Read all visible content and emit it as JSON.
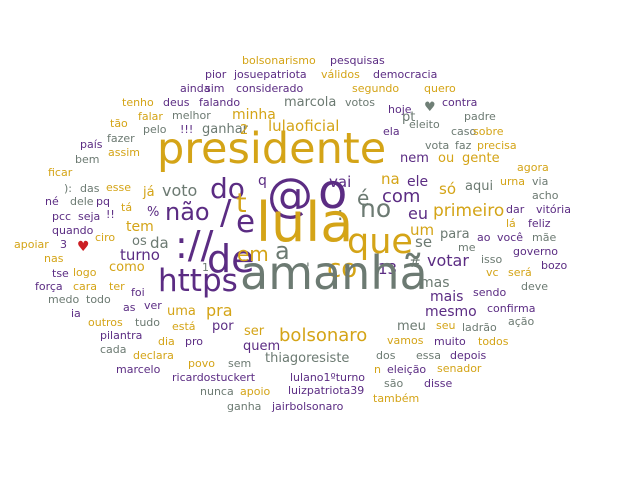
{
  "palette": {
    "gold": "#d4a417",
    "purple": "#5b2c83",
    "gray": "#6c7a72"
  },
  "heart_icons": [
    {
      "name": "heart-icon-red",
      "color": "#cc1f24"
    },
    {
      "name": "heart-icon-gray",
      "color": "#6f7f76"
    }
  ],
  "words": [
    "bolsonarismo",
    "pesquisas",
    "pior",
    "josuepatriota",
    "válidos",
    "democracia",
    "ainda",
    "sim",
    "considerado",
    "segundo",
    "quero",
    "tenho",
    "deus",
    "falando",
    "marcola",
    "votos",
    "hoje",
    "contra",
    "tão",
    "falar",
    "melhor",
    "minha",
    "ela",
    "eleito",
    "padre",
    "país",
    "fazer",
    "pelo",
    "!!!",
    "ganhar",
    "lulaoficial",
    "pt",
    "caso",
    "sobre",
    "bem",
    "assim",
    "vota",
    "faz",
    "precisa",
    "presidente",
    "2",
    "nem",
    "ou",
    "gente",
    "ficar",
    "q",
    "agora",
    "):",
    "das",
    "esse",
    "voto",
    "do",
    "vai",
    "ele",
    "só",
    "aqui",
    "urna",
    "via",
    "né",
    "dele",
    "pq",
    "já",
    "t",
    "é",
    "com",
    "acho",
    "pcc",
    "seja",
    "!!",
    "tá",
    "na",
    "dar",
    "vitória",
    "quando",
    "%",
    "não",
    "/",
    "@",
    "o",
    "no",
    "eu",
    "primeiro",
    "lá",
    "feliz",
    "apoiar",
    "3",
    "tem",
    "e",
    ":",
    "um",
    "ao",
    "você",
    "mãe",
    "ciro",
    "da",
    "://",
    "lula",
    "que",
    "se",
    "para",
    "os",
    "https",
    "de",
    "governo",
    "nas",
    "turno",
    "em",
    "#",
    "votar",
    "me",
    "tse",
    "logo",
    "como",
    "a",
    "'",
    "13",
    "isso",
    "bozo",
    "força",
    "cara",
    "1",
    "co",
    "mas",
    "será",
    "vc",
    "ter",
    "foi",
    "amanhã",
    "sendo",
    "deve",
    "medo",
    "todo",
    "mais",
    "confirma",
    "ia",
    "as",
    "ver",
    "uma",
    "pra",
    "mesmo",
    "outros",
    "tudo",
    "bolsonaro",
    "ação",
    "está",
    "por",
    "meu",
    "seu",
    "ladrão",
    "pilantra",
    "ser",
    "dia",
    "pro",
    "quem",
    "vamos",
    "muito",
    "todos",
    "cada",
    "declara",
    "thiagoresiste",
    "dos",
    "essa",
    "depois",
    "povo",
    "sem",
    "marcelo",
    "n",
    "eleição",
    "senador",
    "ricardostuckert",
    "lulano1ºturno",
    "são",
    "disse",
    "nunca",
    "apoio",
    "luizpatriota39",
    "também",
    "ganha",
    "jairbolsonaro"
  ]
}
